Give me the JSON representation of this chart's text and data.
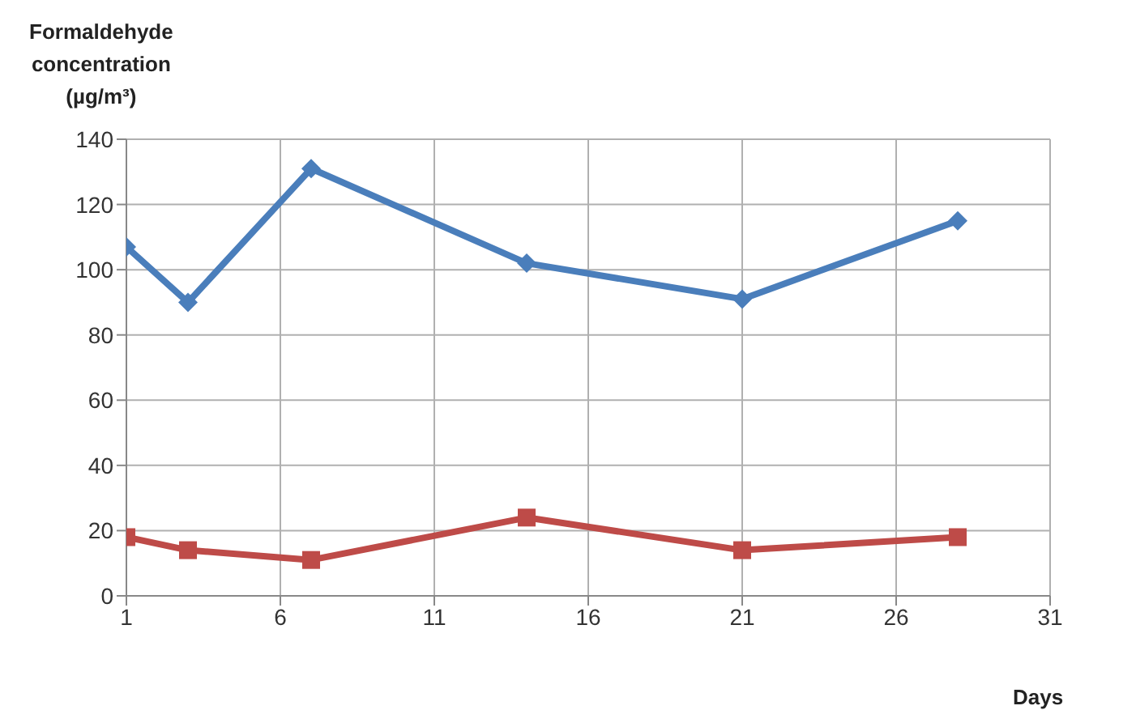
{
  "chart_data": {
    "type": "line",
    "ylabel": "Formaldehyde concentration (µg/m³)",
    "xlabel": "Days",
    "x": [
      1,
      3,
      7,
      14,
      21,
      28
    ],
    "series": [
      {
        "color": "#4a7ebb",
        "values": [
          107,
          90,
          131,
          102,
          91,
          115
        ],
        "marker": "diamond"
      },
      {
        "color": "#be4b48",
        "values": [
          18,
          14,
          11,
          24,
          14,
          18
        ],
        "marker": "square"
      }
    ],
    "xlim": [
      1,
      31
    ],
    "xticks": [
      1,
      6,
      11,
      16,
      21,
      26,
      31
    ],
    "ylim": [
      0,
      140
    ],
    "yticks": [
      0,
      20,
      40,
      60,
      80,
      100,
      120,
      140
    ],
    "grid": true,
    "legend": false,
    "line_style": "solid"
  }
}
